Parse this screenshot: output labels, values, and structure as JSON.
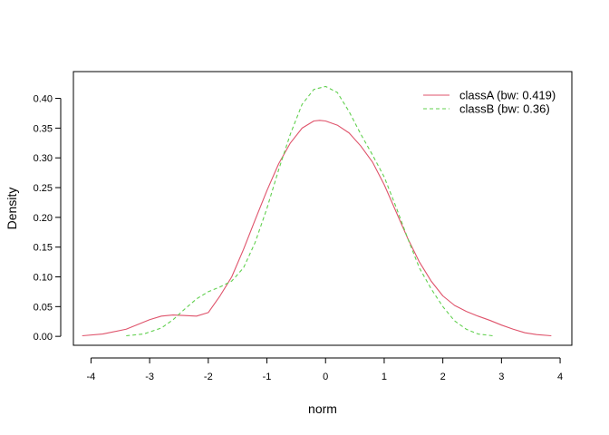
{
  "chart_data": {
    "type": "line",
    "title": "",
    "xlabel": "norm",
    "ylabel": "Density",
    "xlim": [
      -4.3,
      4.2
    ],
    "ylim": [
      -0.015,
      0.445
    ],
    "x_ticks": [
      -4,
      -3,
      -2,
      -1,
      0,
      1,
      2,
      3,
      4
    ],
    "x_tick_labels": [
      "-4",
      "-3",
      "-2",
      "-1",
      "0",
      "1",
      "2",
      "3",
      "4"
    ],
    "y_ticks": [
      0.0,
      0.05,
      0.1,
      0.15,
      0.2,
      0.25,
      0.3,
      0.35,
      0.4
    ],
    "y_tick_labels": [
      "0.00",
      "0.05",
      "0.10",
      "0.15",
      "0.20",
      "0.25",
      "0.30",
      "0.35",
      "0.40"
    ],
    "grid": false,
    "legend_position": "top-right",
    "series": [
      {
        "name": "classA (bw: 0.419)",
        "color": "#DF536B",
        "dash": "solid",
        "x": [
          -4.15,
          -3.8,
          -3.4,
          -3.0,
          -2.8,
          -2.6,
          -2.4,
          -2.2,
          -2.0,
          -1.8,
          -1.6,
          -1.4,
          -1.2,
          -1.0,
          -0.8,
          -0.6,
          -0.4,
          -0.2,
          -0.1,
          0.0,
          0.2,
          0.4,
          0.6,
          0.8,
          1.0,
          1.2,
          1.4,
          1.6,
          1.8,
          2.0,
          2.2,
          2.4,
          2.6,
          2.8,
          3.0,
          3.2,
          3.4,
          3.6,
          3.85
        ],
        "y": [
          0.001,
          0.004,
          0.012,
          0.028,
          0.034,
          0.036,
          0.035,
          0.034,
          0.04,
          0.068,
          0.1,
          0.146,
          0.196,
          0.245,
          0.29,
          0.325,
          0.35,
          0.362,
          0.363,
          0.362,
          0.355,
          0.342,
          0.32,
          0.293,
          0.255,
          0.21,
          0.165,
          0.125,
          0.093,
          0.068,
          0.052,
          0.042,
          0.034,
          0.027,
          0.019,
          0.012,
          0.006,
          0.003,
          0.001
        ]
      },
      {
        "name": "classB (bw: 0.36)",
        "color": "#61D04F",
        "dash": "dashed",
        "x": [
          -3.4,
          -3.1,
          -2.8,
          -2.6,
          -2.4,
          -2.2,
          -2.0,
          -1.8,
          -1.6,
          -1.4,
          -1.2,
          -1.0,
          -0.8,
          -0.6,
          -0.4,
          -0.2,
          0.0,
          0.2,
          0.4,
          0.6,
          0.8,
          1.0,
          1.2,
          1.4,
          1.6,
          1.8,
          2.0,
          2.2,
          2.4,
          2.6,
          2.85
        ],
        "y": [
          0.001,
          0.004,
          0.014,
          0.028,
          0.046,
          0.063,
          0.075,
          0.083,
          0.093,
          0.115,
          0.158,
          0.215,
          0.28,
          0.34,
          0.39,
          0.415,
          0.42,
          0.41,
          0.378,
          0.34,
          0.305,
          0.268,
          0.218,
          0.165,
          0.115,
          0.08,
          0.05,
          0.026,
          0.012,
          0.004,
          0.001
        ]
      }
    ]
  }
}
